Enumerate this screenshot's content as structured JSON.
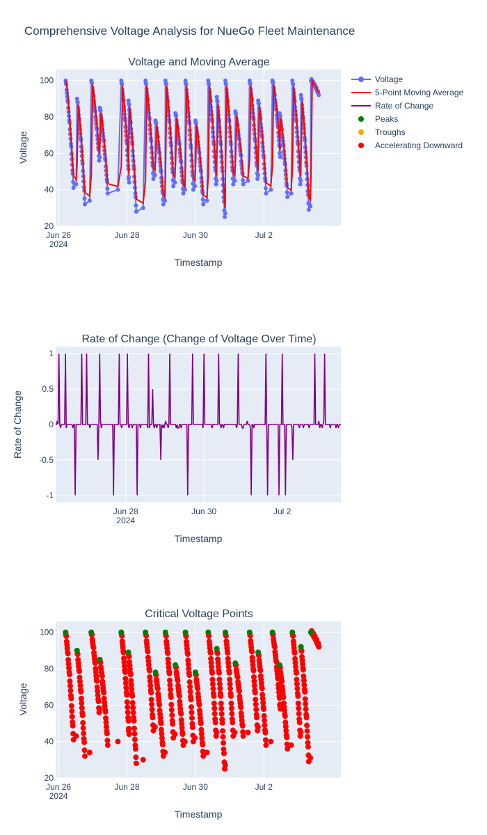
{
  "figure_title": "Comprehensive Voltage Analysis for NueGo Fleet Maintenance",
  "colors": {
    "plot_bg": "#E5ECF6",
    "voltage": "#636EFA",
    "moving_avg": "#FF0000",
    "rate": "#800080",
    "peaks": "#008000",
    "troughs": "#FFA500",
    "accel": "#FF0000"
  },
  "legend": {
    "placement": "top-right",
    "items": [
      {
        "key": "voltage",
        "label": "Voltage",
        "style": "line-marker"
      },
      {
        "key": "moving_avg",
        "label": "5-Point Moving Average",
        "style": "line"
      },
      {
        "key": "rate",
        "label": "Rate of Change",
        "style": "line"
      },
      {
        "key": "peaks",
        "label": "Peaks",
        "style": "marker"
      },
      {
        "key": "troughs",
        "label": "Troughs",
        "style": "marker"
      },
      {
        "key": "accel",
        "label": "Accelerating Downward",
        "style": "marker"
      }
    ]
  },
  "chart_data": [
    {
      "type": "line",
      "title": "Voltage and Moving Average",
      "xlabel": "Timestamp",
      "ylabel": "Voltage",
      "xlim": [
        "2024-06-25T22:00",
        "2024-07-04T06:00"
      ],
      "ylim": [
        20,
        106
      ],
      "x_ticks": [
        "Jun 26\n2024",
        "Jun 28",
        "Jun 30",
        "Jul 2"
      ],
      "y_ticks": [
        20,
        40,
        60,
        80,
        100
      ],
      "grid": true,
      "cycles": [
        {
          "t": "2024-06-26T05:00",
          "peak": 100,
          "trough": 41
        },
        {
          "t": "2024-06-26T13:00",
          "peak": 90,
          "trough": 32
        },
        {
          "t": "2024-06-26T23:00",
          "peak": 100,
          "trough": 56
        },
        {
          "t": "2024-06-27T05:00",
          "peak": 85,
          "trough": 38
        },
        {
          "t": "2024-06-27T20:00",
          "peak": 100,
          "trough": 44
        },
        {
          "t": "2024-06-28T01:00",
          "peak": 89,
          "trough": 28
        },
        {
          "t": "2024-06-28T13:00",
          "peak": 100,
          "trough": 46
        },
        {
          "t": "2024-06-28T20:00",
          "peak": 78,
          "trough": 32
        },
        {
          "t": "2024-06-29T03:00",
          "peak": 100,
          "trough": 42
        },
        {
          "t": "2024-06-29T10:00",
          "peak": 82,
          "trough": 38
        },
        {
          "t": "2024-06-29T17:00",
          "peak": 100,
          "trough": 40
        },
        {
          "t": "2024-06-30T00:00",
          "peak": 78,
          "trough": 32
        },
        {
          "t": "2024-06-30T09:00",
          "peak": 100,
          "trough": 43
        },
        {
          "t": "2024-06-30T15:00",
          "peak": 91,
          "trough": 25
        },
        {
          "t": "2024-06-30T21:00",
          "peak": 100,
          "trough": 43
        },
        {
          "t": "2024-07-01T04:00",
          "peak": 83,
          "trough": 43
        },
        {
          "t": "2024-07-01T14:00",
          "peak": 100,
          "trough": 46
        },
        {
          "t": "2024-07-01T20:00",
          "peak": 89,
          "trough": 38
        },
        {
          "t": "2024-07-02T06:00",
          "peak": 100,
          "trough": 58
        },
        {
          "t": "2024-07-02T11:00",
          "peak": 82,
          "trough": 36
        },
        {
          "t": "2024-07-02T20:00",
          "peak": 100,
          "trough": 43
        },
        {
          "t": "2024-07-03T02:00",
          "peak": 92,
          "trough": 29
        },
        {
          "t": "2024-07-03T09:00",
          "peak": 100,
          "trough": 92
        }
      ]
    },
    {
      "type": "line",
      "title": "Rate of Change (Change of Voltage Over Time)",
      "xlabel": "Timestamp",
      "ylabel": "Rate of Change",
      "xlim": [
        "2024-06-26T05:00",
        "2024-07-03T12:00"
      ],
      "ylim": [
        -1.1,
        1.1
      ],
      "x_ticks": [
        "Jun 28\n2024",
        "Jun 30",
        "Jul 2"
      ],
      "y_ticks": [
        -1,
        -0.5,
        0,
        0.5,
        1
      ],
      "grid": true
    },
    {
      "type": "scatter",
      "title": "Critical Voltage Points",
      "xlabel": "Timestamp",
      "ylabel": "Voltage",
      "xlim": [
        "2024-06-25T22:00",
        "2024-07-04T06:00"
      ],
      "ylim": [
        20,
        106
      ],
      "x_ticks": [
        "Jun 26\n2024",
        "Jun 28",
        "Jun 30",
        "Jul 2"
      ],
      "y_ticks": [
        20,
        40,
        60,
        80,
        100
      ],
      "grid": true
    }
  ]
}
